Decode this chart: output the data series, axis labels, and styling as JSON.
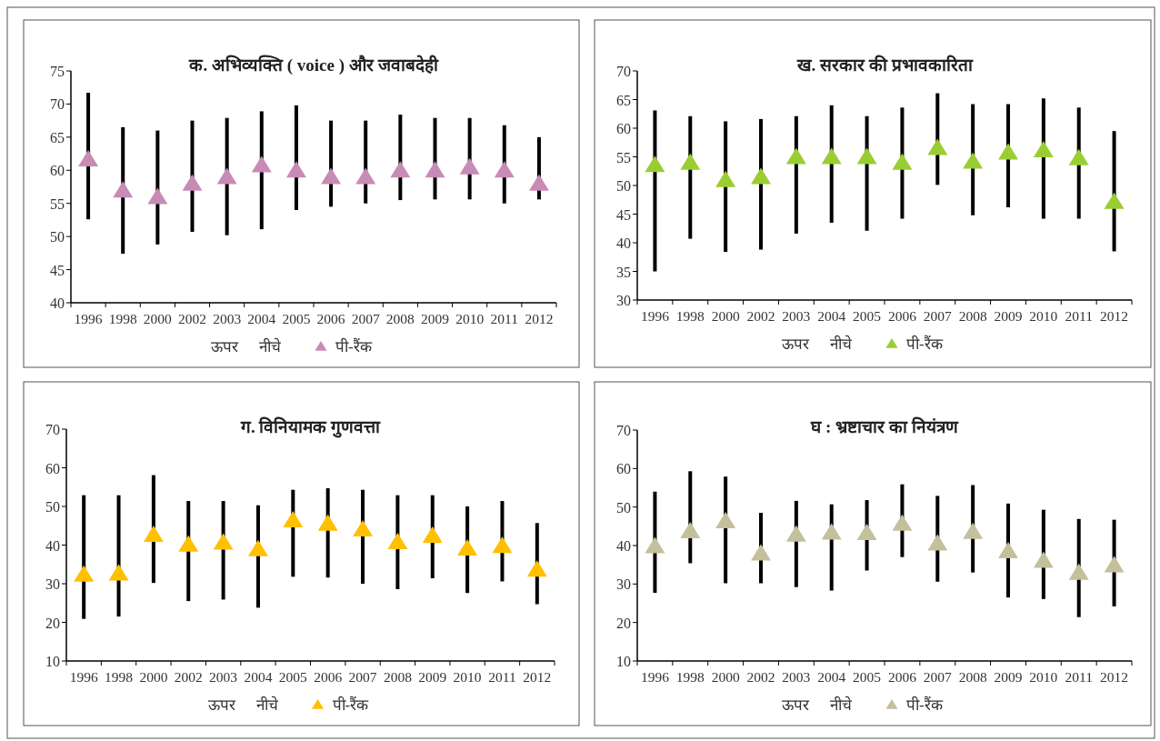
{
  "chart_data": [
    {
      "type": "scatter",
      "title": "क. अभिव्यक्ति ( voice ) और जवाबदेही",
      "categories": [
        "1996",
        "1998",
        "2000",
        "2002",
        "2003",
        "2004",
        "2005",
        "2006",
        "2007",
        "2008",
        "2009",
        "2010",
        "2011",
        "2012"
      ],
      "ylim": [
        40,
        75
      ],
      "yticks": [
        40,
        45,
        50,
        55,
        60,
        65,
        70,
        75
      ],
      "legend": "bottom",
      "marker": "triangle",
      "annotations": [
        "ऊपर",
        "नीचे"
      ],
      "series": [
        {
          "name": "पी-रैंक",
          "color": "#c88bb5",
          "values": [
            61.7,
            57.0,
            56.0,
            58.0,
            59.0,
            60.8,
            60.0,
            59.0,
            59.0,
            60.0,
            60.0,
            60.5,
            60.0,
            58.0
          ],
          "upper": [
            71.7,
            66.5,
            66.0,
            67.5,
            67.9,
            68.9,
            69.8,
            67.5,
            67.5,
            68.4,
            67.9,
            67.9,
            66.8,
            65.0
          ],
          "lower": [
            52.6,
            47.4,
            48.8,
            50.7,
            50.2,
            51.1,
            54.0,
            54.5,
            55.0,
            55.5,
            55.6,
            55.6,
            55.0,
            55.6
          ]
        }
      ]
    },
    {
      "type": "scatter",
      "title": "ख. सरकार की प्रभावकारिता",
      "categories": [
        "1996",
        "1998",
        "2000",
        "2002",
        "2003",
        "2004",
        "2005",
        "2006",
        "2007",
        "2008",
        "2009",
        "2010",
        "2011",
        "2012"
      ],
      "ylim": [
        30,
        70
      ],
      "yticks": [
        30,
        35,
        40,
        45,
        50,
        55,
        60,
        65,
        70
      ],
      "legend": "bottom",
      "marker": "triangle",
      "annotations": [
        "ऊपर",
        "नीचे"
      ],
      "series": [
        {
          "name": "पी-रैंक",
          "color": "#9acd32",
          "values": [
            53.6,
            54.0,
            51.0,
            51.5,
            55.0,
            55.0,
            55.0,
            54.0,
            56.6,
            54.2,
            55.8,
            56.2,
            54.8,
            47.2
          ],
          "upper": [
            63.1,
            62.1,
            61.2,
            61.6,
            62.1,
            64.0,
            62.1,
            63.6,
            66.1,
            64.2,
            64.2,
            65.2,
            63.6,
            59.5
          ],
          "lower": [
            35.0,
            40.7,
            38.4,
            38.8,
            41.6,
            43.5,
            42.1,
            44.2,
            50.1,
            44.8,
            46.2,
            44.2,
            44.2,
            38.5
          ]
        }
      ]
    },
    {
      "type": "scatter",
      "title": "ग. विनियामक गुणवत्ता",
      "categories": [
        "1996",
        "1998",
        "2000",
        "2002",
        "2003",
        "2004",
        "2005",
        "2006",
        "2007",
        "2008",
        "2009",
        "2010",
        "2011",
        "2012"
      ],
      "ylim": [
        10,
        70
      ],
      "yticks": [
        10,
        20,
        30,
        40,
        50,
        60,
        70
      ],
      "legend": "bottom",
      "marker": "triangle",
      "annotations": [
        "ऊपर",
        "नीचे"
      ],
      "series": [
        {
          "name": "पी-रैंक",
          "color": "#ffc000",
          "values": [
            32.4,
            32.7,
            42.7,
            40.2,
            40.7,
            39.0,
            46.5,
            45.6,
            44.1,
            40.8,
            42.5,
            39.2,
            39.8,
            33.7
          ],
          "upper": [
            52.9,
            52.9,
            58.1,
            51.4,
            51.4,
            50.3,
            54.3,
            54.7,
            54.3,
            52.9,
            52.9,
            50.0,
            51.4,
            45.7
          ],
          "lower": [
            20.9,
            21.5,
            30.2,
            25.5,
            25.9,
            23.8,
            31.8,
            31.6,
            30.0,
            28.6,
            31.4,
            27.6,
            30.6,
            24.7
          ]
        }
      ]
    },
    {
      "type": "scatter",
      "title": "घ : भ्रष्टाचार का नियंत्रण",
      "categories": [
        "1996",
        "1998",
        "2000",
        "2002",
        "2003",
        "2004",
        "2005",
        "2006",
        "2007",
        "2008",
        "2009",
        "2010",
        "2011",
        "2012"
      ],
      "ylim": [
        10,
        70
      ],
      "yticks": [
        10,
        20,
        30,
        40,
        50,
        60,
        70
      ],
      "legend": "bottom",
      "marker": "triangle",
      "annotations": [
        "ऊपर",
        "नीचे"
      ],
      "series": [
        {
          "name": "पी-रैंक",
          "color": "#c4bf9c",
          "values": [
            39.9,
            43.8,
            46.4,
            38.0,
            42.9,
            43.4,
            43.3,
            45.7,
            40.6,
            43.6,
            38.6,
            36.1,
            33.0,
            34.9
          ],
          "upper": [
            54.0,
            59.3,
            57.9,
            48.5,
            51.6,
            50.7,
            51.8,
            55.9,
            52.9,
            55.7,
            50.9,
            49.3,
            46.9,
            46.7
          ],
          "lower": [
            27.7,
            35.4,
            30.2,
            30.2,
            29.2,
            28.3,
            33.5,
            37.0,
            30.6,
            33.0,
            26.5,
            26.1,
            21.4,
            24.2
          ]
        }
      ]
    }
  ]
}
